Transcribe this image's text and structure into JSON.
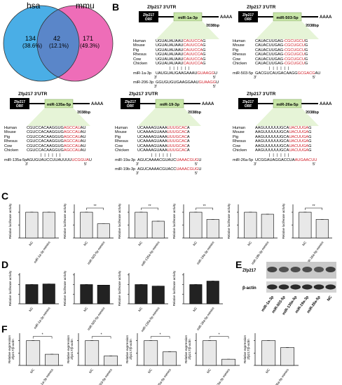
{
  "panel_letters": {
    "B": "B",
    "C": "C",
    "D": "D",
    "E": "E",
    "F": "F"
  },
  "venn": {
    "left_label": "hsa",
    "right_label": "mmu",
    "left_only": "134",
    "left_only_pct": "(38.6%)",
    "shared": "42",
    "shared_pct": "(12.1%)",
    "right_only": "171",
    "right_only_pct": "(49.3%)",
    "left_color": "#4aaee6",
    "right_color": "#ee6db8",
    "overlap_color": "#5a86c9"
  },
  "panel_b": {
    "species": [
      "Human",
      "Mouse",
      "Pig",
      "Rhesus",
      "Cow",
      "Chicken"
    ],
    "utr_title": "Zfp217 3'UTR",
    "orf_label": "Zfp217\nORF",
    "tail": "AAAA",
    "length": "2038bp",
    "constructs": [
      {
        "mir": "miR-1a-3p",
        "seqs": [
          [
            "UGUAUAUAAU",
            "CAUUCCA",
            "G"
          ],
          [
            "UGUAUAUAAU",
            "CAUUCCA",
            "G"
          ],
          [
            "UGUAUAUAAU",
            "CAUUCCA",
            "G"
          ],
          [
            "UGUAUAUAAU",
            "CAUUCCA",
            "G"
          ],
          [
            "UGUAUAUAAU",
            "CAUUCCA",
            "G"
          ],
          [
            "UGUAUAUAAU",
            "CAUUCCA",
            "G"
          ]
        ],
        "mirs": [
          {
            "name": "miR-1a-3p",
            "seq": "UAUGUAUGAAGAAAU",
            "red": "GUAAGG",
            "end": "U",
            "p3": "3'",
            "p5": "5'"
          },
          {
            "name": "miR-206-3p",
            "seq": "GGUGUGUGAAGGAAU",
            "red": "GUAAGG",
            "end": "U",
            "p3": "3'",
            "p5": "5'"
          }
        ]
      },
      {
        "mir": "miR-503-5p",
        "seqs": [
          [
            "CAUACUUGAG",
            "-CGCUGCU",
            "G"
          ],
          [
            "CAUACUUGAG",
            "-CGCUGCU",
            "G"
          ],
          [
            "CAUACUUGAG",
            "-CGCUGCU",
            "G"
          ],
          [
            "CAUACUUGAG",
            "-CGCUGCU",
            "G"
          ],
          [
            "CAUACUUGAG",
            "-CGCUGCU",
            "G"
          ],
          [
            "CAUACUUGAG",
            "-CGCUGCU",
            "G"
          ]
        ],
        "mirs": [
          {
            "name": "miR-503-5p",
            "seq": "GACGUCAUGACAAGG",
            "red": "GCGACG",
            "end": "AU",
            "p3": "3'",
            "p5": "5'"
          }
        ]
      },
      {
        "mir": "miR-135a-5p",
        "seqs": [
          [
            "CGUCCACAAGGUG",
            "AGCCAU",
            "AU"
          ],
          [
            "CGUCCACAAGGUG",
            "AGCCAU",
            "AU"
          ],
          [
            "CGUCCACAAGGUG",
            "AGCCAU",
            "AU"
          ],
          [
            "CGUCCACAAGGUG",
            "AGCCAU",
            "AU"
          ],
          [
            "CGUCCACAAGGUG",
            "AGCCAU",
            "AU"
          ],
          [
            "CGUCCACAAGGUG",
            "AGCCAU",
            "AU"
          ]
        ],
        "mirs": [
          {
            "name": "miR-135a-5p",
            "seq": "AGUGUAUCCUUAUUUU",
            "red": "UCGGUA",
            "end": "U",
            "p3": "3'",
            "p5": "5'"
          }
        ]
      },
      {
        "mir": "miR-19-3p",
        "seqs": [
          [
            "UCAAAAGUAAA",
            "UUUGCAC",
            "A"
          ],
          [
            "UCAAAAGUAAA",
            "UUUGCAC",
            "A"
          ],
          [
            "UCAAAAGUAAA",
            "UUUGCAC",
            "A"
          ],
          [
            "UCAAAAGUAAA",
            "UUUGCAC",
            "A"
          ],
          [
            "UCAAAAGUAAA",
            "UUUGCAC",
            "A"
          ],
          [
            "UCAAAAGUAAA",
            "UUUGCAC",
            "A"
          ]
        ],
        "mirs": [
          {
            "name": "miR-19a-3p",
            "seq": "AGUCAAAACGUAUC",
            "red": "UAAACGUG",
            "end": "U",
            "p3": "3'",
            "p5": "5'"
          },
          {
            "name": "miR-19b-3p",
            "seq": "AGUCAAAACGUACC",
            "red": "UAAACGUG",
            "end": "U",
            "p3": "3'",
            "p5": "5'"
          }
        ]
      },
      {
        "mir": "miR-26a-5p",
        "seqs": [
          [
            "AAGUUUUUUGCA",
            "UACUUGA",
            "G"
          ],
          [
            "AAGUUUUUUGCA",
            "UACUUGA",
            "G"
          ],
          [
            "AAGUUUUUUGCA",
            "UACUUGA",
            "G"
          ],
          [
            "AAGUUUUUUGCA",
            "UACUUGA",
            "G"
          ],
          [
            "AAGUUUUUUGCA",
            "UACUUGA",
            "G"
          ],
          [
            "AAGUUUUUUGCA",
            "UACUUGA",
            "G"
          ]
        ],
        "mirs": [
          {
            "name": "miR-26a-5p",
            "seq": "UCGGAUAGGACCUA",
            "red": "AUGAACUU",
            "end": "",
            "p3": "3'",
            "p5": "5'"
          }
        ]
      }
    ]
  },
  "panel_c": {
    "ylabel": "Relative luciferase activity",
    "sig": "**",
    "charts": [
      {
        "nc": "NC",
        "mimic": "miR-1a-3p mimics",
        "values": [
          1.0,
          1.0
        ],
        "sig": false
      },
      {
        "nc": "NC",
        "mimic": "miR-503-5p mimics",
        "values": [
          1.0,
          0.55
        ],
        "sig": true
      },
      {
        "nc": "NC",
        "mimic": "miR-135a-5p mimics",
        "values": [
          1.0,
          0.65
        ],
        "sig": true
      },
      {
        "nc": "NC",
        "mimic": "miR-19a-3p mimics",
        "values": [
          1.0,
          0.72
        ],
        "sig": true
      },
      {
        "nc": "NC",
        "mimic": "miR-19b-3p mimics",
        "values": [
          1.0,
          0.92
        ],
        "sig": false
      },
      {
        "nc": "NC",
        "mimic": "miR-26a-5p mimics",
        "values": [
          1.0,
          0.72
        ],
        "sig": true
      }
    ]
  },
  "panel_d": {
    "ylabel": "Relative luciferase activity",
    "charts": [
      {
        "nc": "NC",
        "mimic": "miR-1a-3p mimics",
        "values": [
          1.0,
          1.03
        ]
      },
      {
        "nc": "NC",
        "mimic": "miR-503-5p mimics",
        "values": [
          1.0,
          0.97
        ]
      },
      {
        "nc": "NC",
        "mimic": "miR-135a-5p mimics",
        "values": [
          1.0,
          0.92
        ]
      },
      {
        "nc": "NC",
        "mimic": "miR-26a-5p mimics",
        "values": [
          1.0,
          1.18
        ]
      }
    ]
  },
  "panel_e": {
    "rows": [
      "Zfp217",
      "β-actin"
    ],
    "lanes": [
      "miR-1a-3p",
      "miR-503-5p",
      "miR-135a-5p",
      "miR-19a-3p",
      "miR-26a-5p",
      "NC"
    ],
    "zfp_intensity": [
      0.7,
      0.55,
      0.6,
      0.6,
      0.5,
      0.75
    ]
  },
  "panel_f": {
    "ylabel_lines": [
      "Relative expression",
      "Zfp217/β-actin"
    ],
    "sig": "*",
    "charts": [
      {
        "nc": "NC",
        "mimic": "miR-1a-3p mimics",
        "values": [
          1.0,
          0.45
        ],
        "sig": true
      },
      {
        "nc": "NC",
        "mimic": "miR-503-5p mimics",
        "values": [
          1.0,
          0.38
        ],
        "sig": true
      },
      {
        "nc": "NC",
        "mimic": "miR-135a-5p mimics",
        "values": [
          1.0,
          0.55
        ],
        "sig": true
      },
      {
        "nc": "NC",
        "mimic": "miR-19a-3p mimics",
        "values": [
          1.0,
          0.25
        ],
        "sig": true
      },
      {
        "nc": "NC",
        "mimic": "miR-26a-5p mimics",
        "values": [
          1.0,
          0.72
        ],
        "sig": false
      }
    ]
  }
}
